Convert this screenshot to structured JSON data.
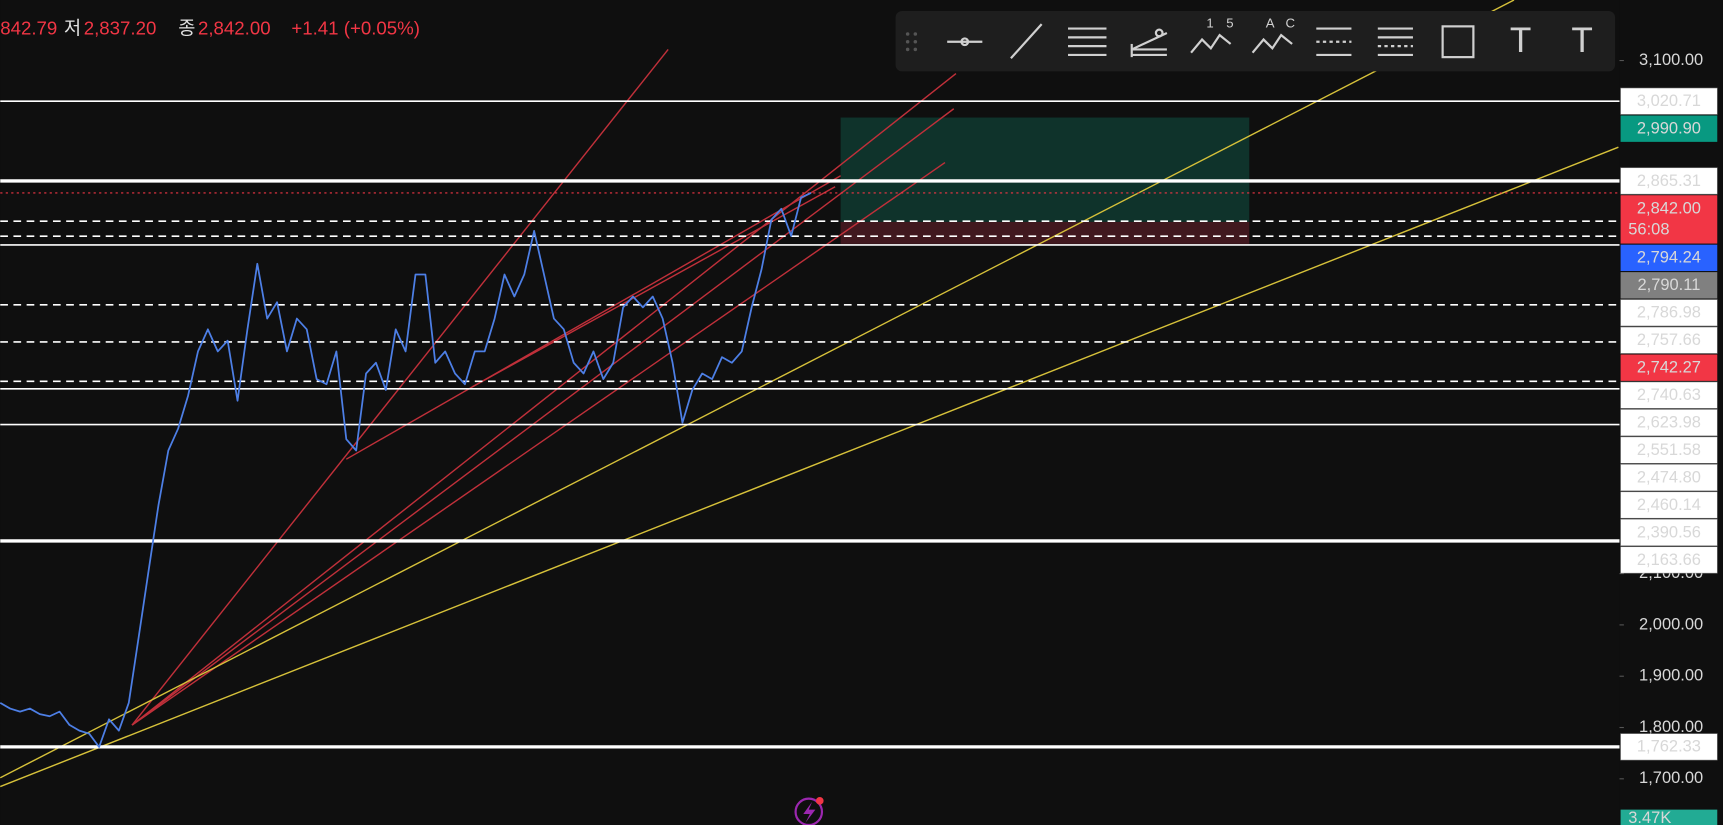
{
  "header": {
    "high_fragment": "842.79",
    "low_label": "저",
    "low": "2,837.20",
    "close_label": "종",
    "close": "2,842.00",
    "change": "+1.41 (+0.05%)"
  },
  "toolbar": {
    "wave_digits": [
      "1",
      "5"
    ],
    "wave_letters": [
      "A",
      "C"
    ],
    "text_tool": "T",
    "anchored_text_tool": "T"
  },
  "chart_data": {
    "type": "line",
    "series": [
      {
        "name": null,
        "color": "#4d7fe6",
        "values": [
          1848,
          1837,
          1831,
          1837,
          1826,
          1822,
          1831,
          1805,
          1794,
          1788,
          1762,
          1816,
          1794,
          1848,
          1976,
          2105,
          2233,
          2340,
          2383,
          2447,
          2533,
          2576,
          2533,
          2554,
          2437,
          2576,
          2704,
          2597,
          2629,
          2533,
          2597,
          2576,
          2479,
          2469,
          2533,
          2362,
          2340,
          2490,
          2511,
          2458,
          2576,
          2533,
          2683,
          2683,
          2511,
          2533,
          2490,
          2469,
          2533,
          2533,
          2597,
          2683,
          2640,
          2683,
          2768,
          2683,
          2597,
          2576,
          2511,
          2490,
          2533,
          2479,
          2511,
          2619,
          2640,
          2619,
          2640,
          2597,
          2511,
          2394,
          2458,
          2490,
          2479,
          2522,
          2511,
          2533,
          2619,
          2693,
          2790,
          2811,
          2758,
          2833,
          2842
        ]
      }
    ],
    "ylim": [
      1610,
      3218
    ],
    "yticks": [
      {
        "value": 3100,
        "label": "3,100.00"
      },
      {
        "value": 2100,
        "label": "2,100.00"
      },
      {
        "value": 2000,
        "label": "2,000.00"
      },
      {
        "value": 1900,
        "label": "1,900.00"
      },
      {
        "value": 1800,
        "label": "1,800.00"
      },
      {
        "value": 1700,
        "label": "1,700.00"
      }
    ],
    "price_lines": [
      {
        "value": 3020.71,
        "label": "3,020.71",
        "line": "solid",
        "tag_color": "#ffffff"
      },
      {
        "value": 2990.9,
        "label": "2,990.90",
        "line": "none",
        "tag_color": "#089981"
      },
      {
        "value": 2865.31,
        "label": "2,865.31",
        "line": "thick",
        "tag_color": "#ffffff"
      },
      {
        "value": 2842.0,
        "label": "2,842.00",
        "line": "dotted",
        "tag_color": "#f23645",
        "countdown": "56:08"
      },
      {
        "value": 2794.24,
        "label": "2,794.24",
        "line": "none",
        "tag_color": "#2962ff"
      },
      {
        "value": 2790.11,
        "label": "2,790.11",
        "line": "none",
        "tag_color": "#808080"
      },
      {
        "value": 2786.98,
        "label": "2,786.98",
        "line": "dashed",
        "tag_color": "#ffffff"
      },
      {
        "value": 2757.66,
        "label": "2,757.66",
        "line": "dashed",
        "tag_color": "#ffffff"
      },
      {
        "value": 2742.27,
        "label": "2,742.27",
        "line": "none",
        "tag_color": "#f23645"
      },
      {
        "value": 2740.63,
        "label": "2,740.63",
        "line": "solid",
        "tag_color": "#ffffff"
      },
      {
        "value": 2623.98,
        "label": "2,623.98",
        "line": "dashed",
        "tag_color": "#ffffff"
      },
      {
        "value": 2551.58,
        "label": "2,551.58",
        "line": "dashed",
        "tag_color": "#ffffff"
      },
      {
        "value": 2474.8,
        "label": "2,474.80",
        "line": "dashed",
        "tag_color": "#ffffff"
      },
      {
        "value": 2460.14,
        "label": "2,460.14",
        "line": "solid",
        "tag_color": "#ffffff"
      },
      {
        "value": 2390.56,
        "label": "2,390.56",
        "line": "solid",
        "tag_color": "#ffffff"
      },
      {
        "value": 2163.66,
        "label": "2,163.66",
        "line": "thick",
        "tag_color": "#ffffff"
      },
      {
        "value": 1762.33,
        "label": "1,762.33",
        "line": "thick",
        "tag_color": "#ffffff"
      }
    ],
    "volume_label": "3.47K",
    "volume_tag_color": "#22ab94"
  }
}
